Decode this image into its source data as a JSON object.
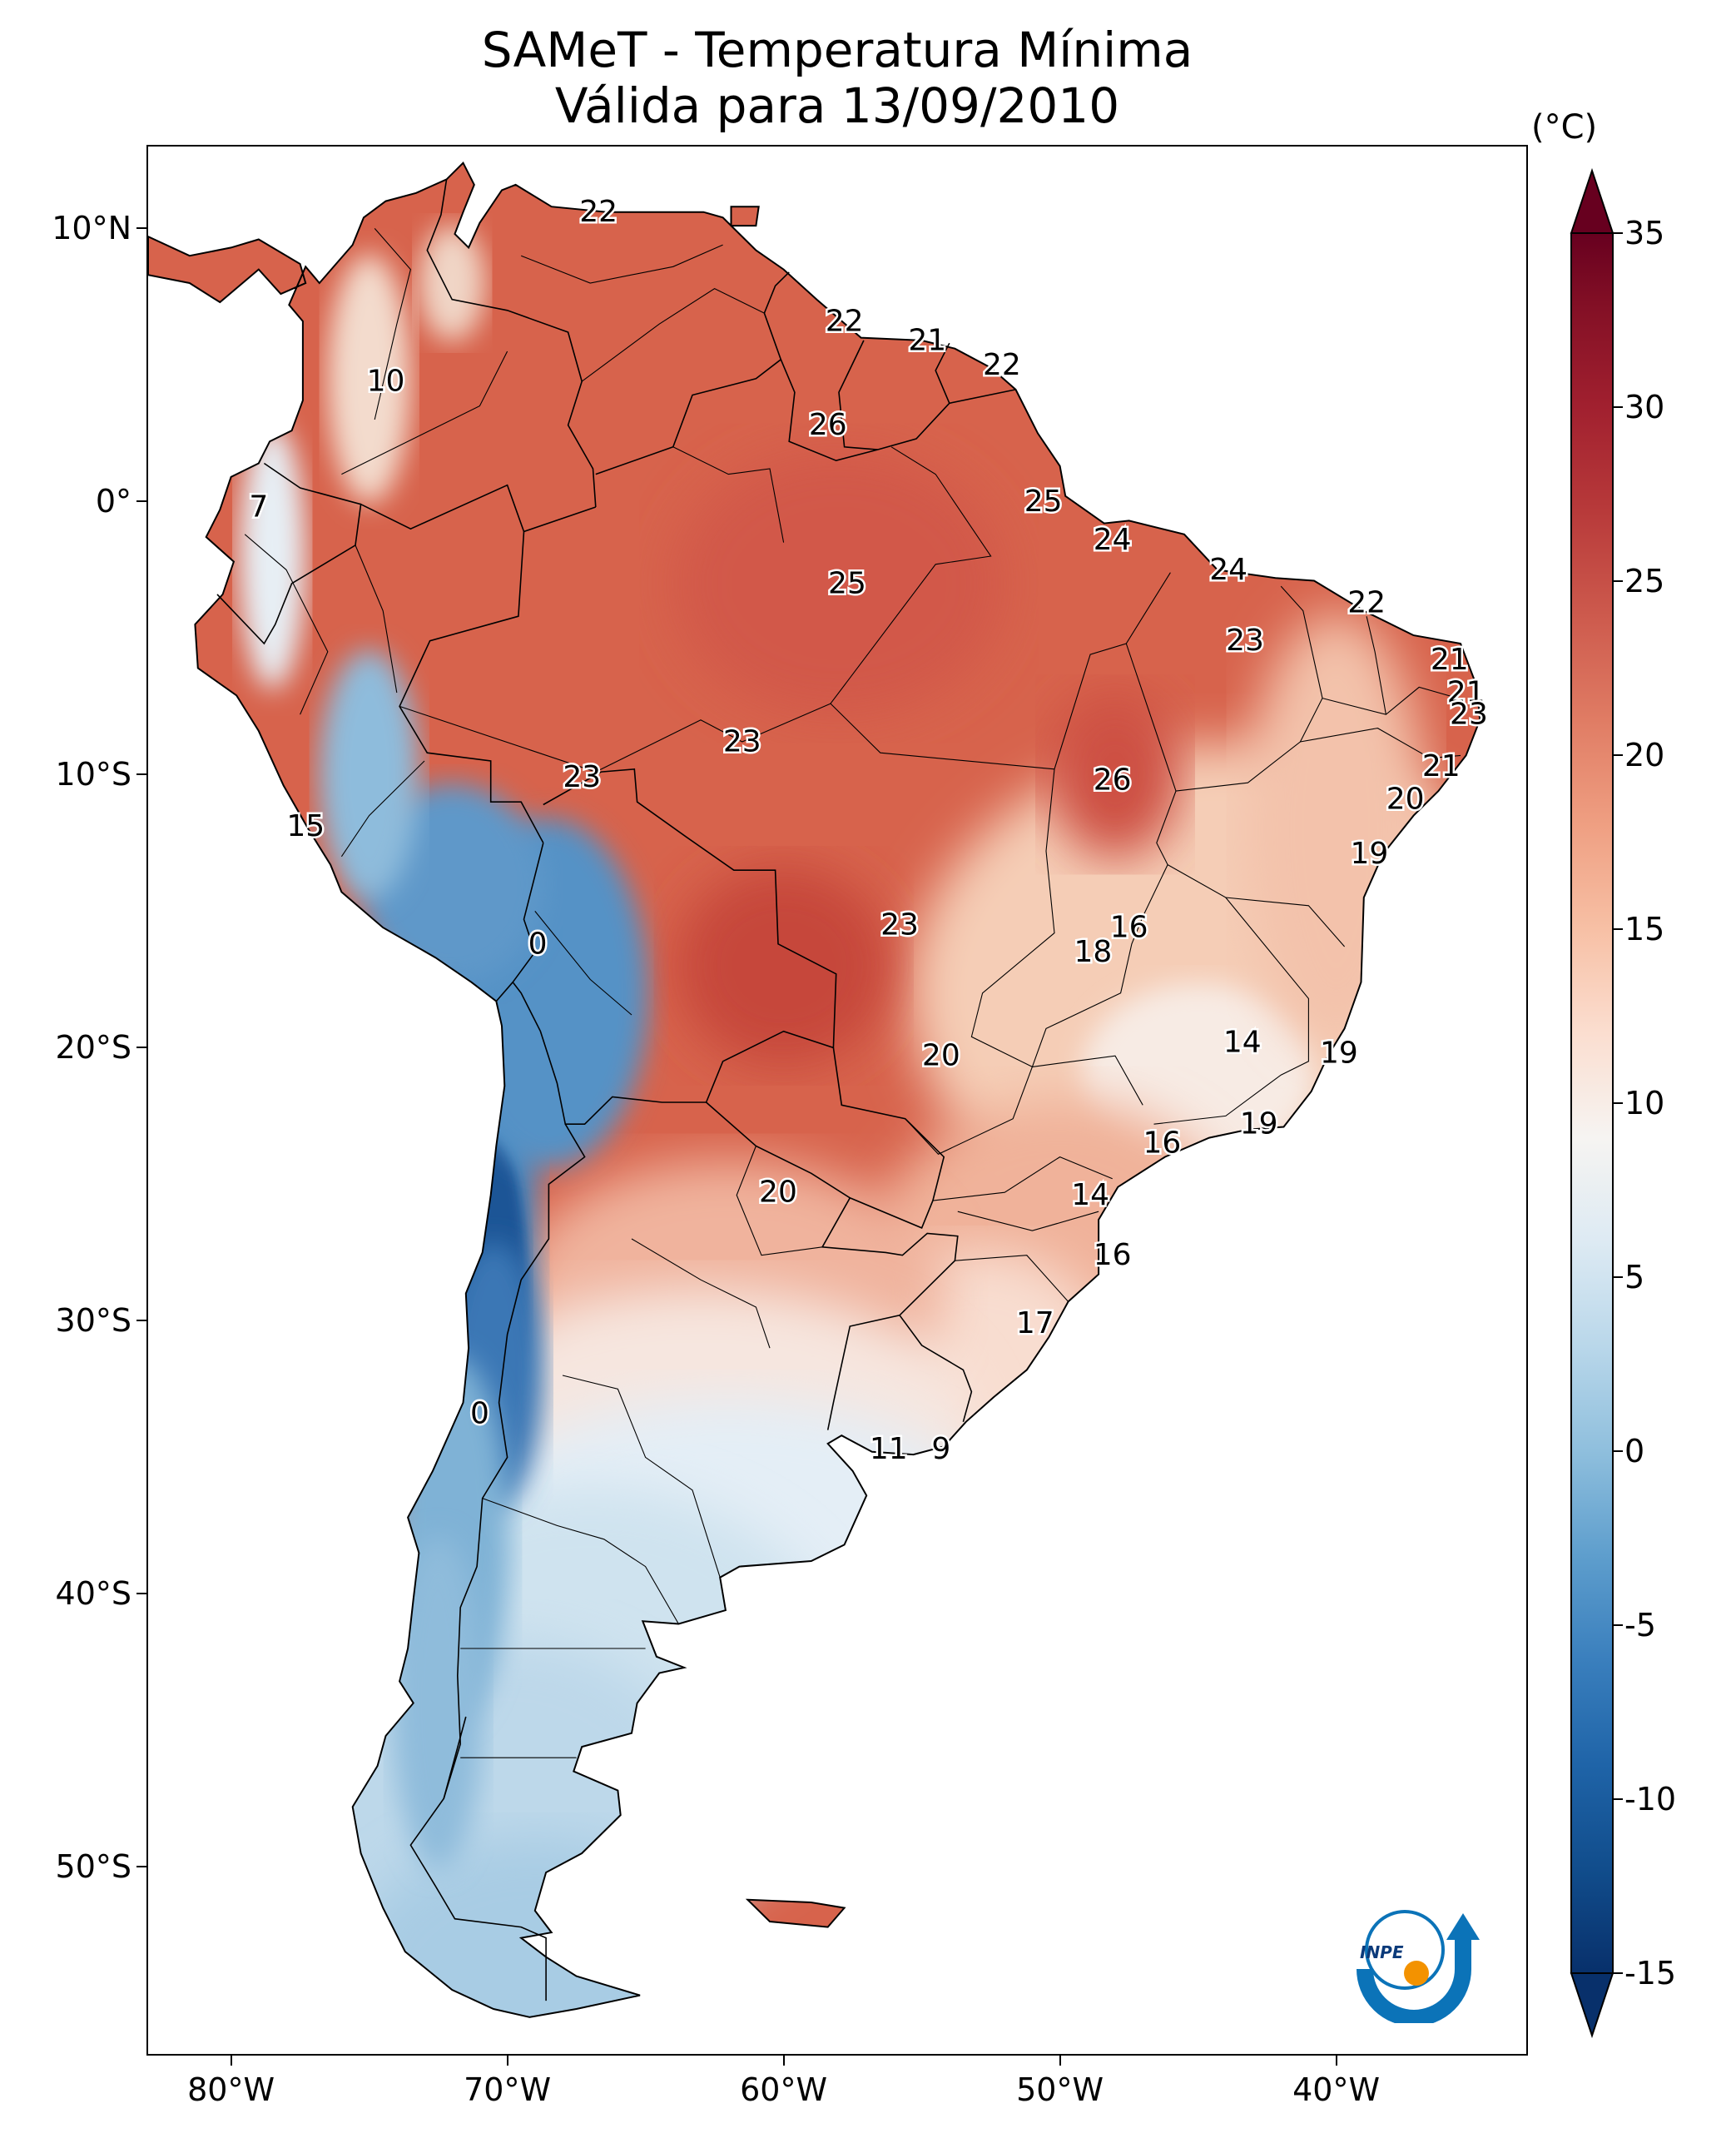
{
  "title": {
    "line1": "SAMeT - Temperatura Mínima",
    "line2": "Válida para 13/09/2010"
  },
  "map": {
    "lon_range": [
      -83,
      -33
    ],
    "lat_range": [
      -57,
      13
    ],
    "lat_ticks": [
      {
        "value": 10,
        "label": "10°N"
      },
      {
        "value": 0,
        "label": "0°"
      },
      {
        "value": -10,
        "label": "10°S"
      },
      {
        "value": -20,
        "label": "20°S"
      },
      {
        "value": -30,
        "label": "30°S"
      },
      {
        "value": -40,
        "label": "40°S"
      },
      {
        "value": -50,
        "label": "50°S"
      }
    ],
    "lon_ticks": [
      {
        "value": -80,
        "label": "80°W"
      },
      {
        "value": -70,
        "label": "70°W"
      },
      {
        "value": -60,
        "label": "60°W"
      },
      {
        "value": -50,
        "label": "50°W"
      },
      {
        "value": -40,
        "label": "40°W"
      }
    ],
    "annotations": [
      {
        "text": "22",
        "lon": -66.7,
        "lat": 10.6
      },
      {
        "text": "10",
        "lon": -74.4,
        "lat": 4.4
      },
      {
        "text": "22",
        "lon": -57.8,
        "lat": 6.6
      },
      {
        "text": "21",
        "lon": -54.8,
        "lat": 5.9
      },
      {
        "text": "22",
        "lon": -52.1,
        "lat": 5.0
      },
      {
        "text": "26",
        "lon": -58.4,
        "lat": 2.8
      },
      {
        "text": "7",
        "lon": -79.0,
        "lat": -0.2
      },
      {
        "text": "25",
        "lon": -50.6,
        "lat": 0.0
      },
      {
        "text": "24",
        "lon": -48.1,
        "lat": -1.4
      },
      {
        "text": "24",
        "lon": -43.9,
        "lat": -2.5
      },
      {
        "text": "22",
        "lon": -38.9,
        "lat": -3.7
      },
      {
        "text": "25",
        "lon": -57.7,
        "lat": -3.0
      },
      {
        "text": "23",
        "lon": -43.3,
        "lat": -5.1
      },
      {
        "text": "21",
        "lon": -35.9,
        "lat": -5.8
      },
      {
        "text": "21",
        "lon": -35.3,
        "lat": -7.0
      },
      {
        "text": "23",
        "lon": -35.2,
        "lat": -7.8
      },
      {
        "text": "23",
        "lon": -61.5,
        "lat": -8.8
      },
      {
        "text": "23",
        "lon": -67.3,
        "lat": -10.1
      },
      {
        "text": "26",
        "lon": -48.1,
        "lat": -10.2
      },
      {
        "text": "21",
        "lon": -36.2,
        "lat": -9.7
      },
      {
        "text": "20",
        "lon": -37.5,
        "lat": -10.9
      },
      {
        "text": "15",
        "lon": -77.3,
        "lat": -11.9
      },
      {
        "text": "19",
        "lon": -38.8,
        "lat": -12.9
      },
      {
        "text": "0",
        "lon": -68.9,
        "lat": -16.2
      },
      {
        "text": "23",
        "lon": -55.8,
        "lat": -15.5
      },
      {
        "text": "16",
        "lon": -47.5,
        "lat": -15.6
      },
      {
        "text": "18",
        "lon": -48.8,
        "lat": -16.5
      },
      {
        "text": "14",
        "lon": -43.4,
        "lat": -19.8
      },
      {
        "text": "19",
        "lon": -39.9,
        "lat": -20.2
      },
      {
        "text": "20",
        "lon": -54.3,
        "lat": -20.3
      },
      {
        "text": "19",
        "lon": -42.8,
        "lat": -22.8
      },
      {
        "text": "16",
        "lon": -46.3,
        "lat": -23.5
      },
      {
        "text": "14",
        "lon": -48.9,
        "lat": -25.4
      },
      {
        "text": "20",
        "lon": -60.2,
        "lat": -25.3
      },
      {
        "text": "16",
        "lon": -48.1,
        "lat": -27.6
      },
      {
        "text": "17",
        "lon": -50.9,
        "lat": -30.1
      },
      {
        "text": "0",
        "lon": -71.0,
        "lat": -33.4
      },
      {
        "text": "11",
        "lon": -56.2,
        "lat": -34.7
      },
      {
        "text": "9",
        "lon": -54.3,
        "lat": -34.7
      }
    ]
  },
  "colorbar": {
    "unit": "(°C)",
    "min": -15,
    "max": 35,
    "ticks": [
      {
        "value": 35,
        "label": "35"
      },
      {
        "value": 30,
        "label": "30"
      },
      {
        "value": 25,
        "label": "25"
      },
      {
        "value": 20,
        "label": "20"
      },
      {
        "value": 15,
        "label": "15"
      },
      {
        "value": 10,
        "label": "10"
      },
      {
        "value": 5,
        "label": "5"
      },
      {
        "value": 0,
        "label": "0"
      },
      {
        "value": -5,
        "label": "-5"
      },
      {
        "value": -10,
        "label": "-10"
      },
      {
        "value": -15,
        "label": "-15"
      }
    ],
    "colormap": "RdBu_r",
    "extend": "both"
  },
  "logo": {
    "text": "INPE",
    "colors": {
      "blue": "#0b73b8",
      "orange": "#f39200"
    }
  }
}
